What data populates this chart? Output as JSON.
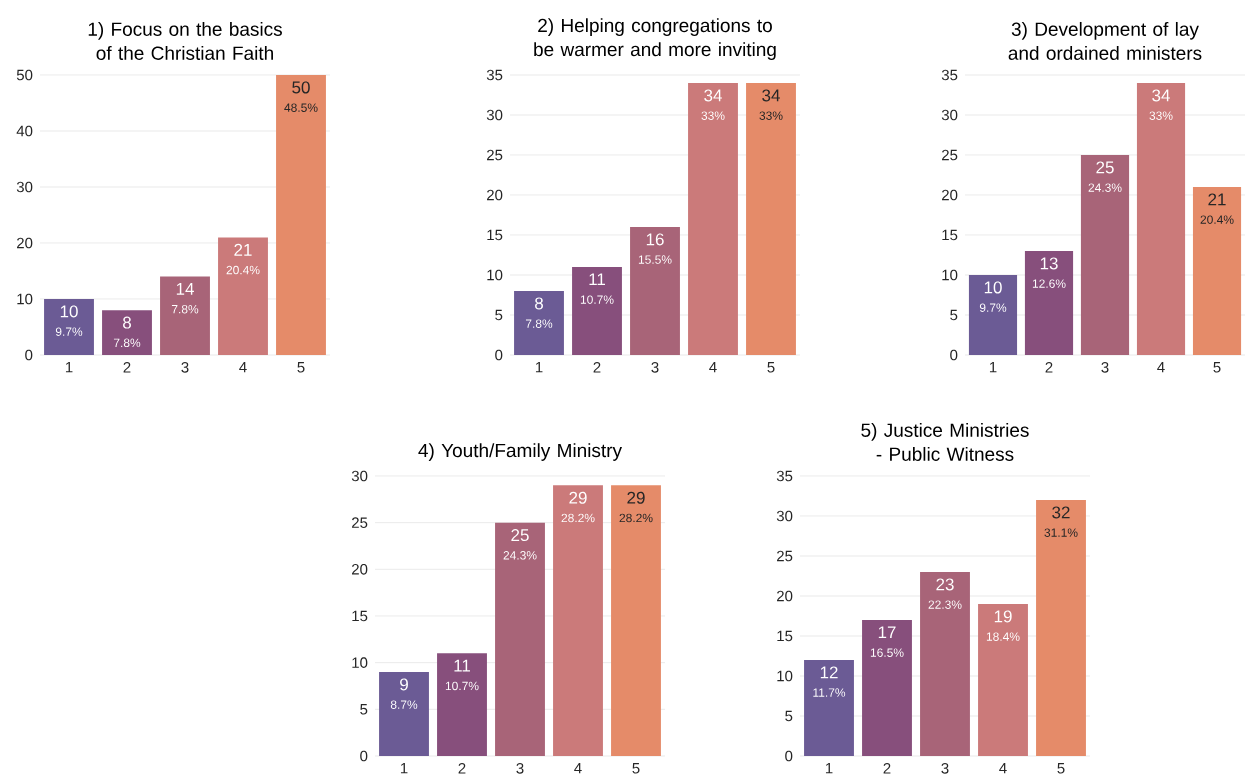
{
  "chart_data": [
    {
      "type": "bar",
      "title": "1) Focus on the basics of the Christian Faith",
      "categories": [
        "1",
        "2",
        "3",
        "4",
        "5"
      ],
      "values": [
        10,
        8,
        14,
        21,
        50
      ],
      "colors": [
        "#6b5b95",
        "#874f7c",
        "#a86478",
        "#cb7a7a",
        "#e58b69"
      ],
      "data_labels": true,
      "ylim": [
        0,
        50
      ],
      "yticks": [
        0,
        10,
        20,
        30,
        40,
        50
      ],
      "grid": "y",
      "annotations": [
        {
          "text": "9.7%",
          "x": "1",
          "y": 10
        },
        {
          "text": "7.8%",
          "x": "2",
          "y": 8
        },
        {
          "text": "7.8%",
          "x": "3",
          "y": 14
        },
        {
          "text": "20.4%",
          "x": "4",
          "y": 21
        },
        {
          "text": "48.5%",
          "x": "5",
          "y": 50
        }
      ]
    },
    {
      "type": "bar",
      "title": "2) Helping congregations to be warmer and more inviting",
      "categories": [
        "1",
        "2",
        "3",
        "4",
        "5"
      ],
      "values": [
        8,
        11,
        16,
        34,
        34
      ],
      "colors": [
        "#6b5b95",
        "#874f7c",
        "#a86478",
        "#cb7a7a",
        "#e58b69"
      ],
      "data_labels": true,
      "ylim": [
        0,
        35
      ],
      "yticks": [
        0,
        5,
        10,
        15,
        20,
        25,
        30,
        35
      ],
      "grid": "y",
      "annotations": [
        {
          "text": "7.8%",
          "x": "1",
          "y": 8
        },
        {
          "text": "10.7%",
          "x": "2",
          "y": 11
        },
        {
          "text": "15.5%",
          "x": "3",
          "y": 16
        },
        {
          "text": "33%",
          "x": "4",
          "y": 34
        },
        {
          "text": "33%",
          "x": "5",
          "y": 34
        }
      ]
    },
    {
      "type": "bar",
      "title": "3) Development of lay and ordained ministers",
      "categories": [
        "1",
        "2",
        "3",
        "4",
        "5"
      ],
      "values": [
        10,
        13,
        25,
        34,
        21
      ],
      "colors": [
        "#6b5b95",
        "#874f7c",
        "#a86478",
        "#cb7a7a",
        "#e58b69"
      ],
      "data_labels": true,
      "ylim": [
        0,
        35
      ],
      "yticks": [
        0,
        5,
        10,
        15,
        20,
        25,
        30,
        35
      ],
      "grid": "y",
      "annotations": [
        {
          "text": "9.7%",
          "x": "1",
          "y": 10
        },
        {
          "text": "12.6%",
          "x": "2",
          "y": 13
        },
        {
          "text": "24.3%",
          "x": "3",
          "y": 25
        },
        {
          "text": "33%",
          "x": "4",
          "y": 34
        },
        {
          "text": "20.4%",
          "x": "5",
          "y": 21
        }
      ]
    },
    {
      "type": "bar",
      "title": "4) Youth/Family Ministry",
      "categories": [
        "1",
        "2",
        "3",
        "4",
        "5"
      ],
      "values": [
        9,
        11,
        25,
        29,
        29
      ],
      "colors": [
        "#6b5b95",
        "#874f7c",
        "#a86478",
        "#cb7a7a",
        "#e58b69"
      ],
      "data_labels": true,
      "ylim": [
        0,
        30
      ],
      "yticks": [
        0,
        5,
        10,
        15,
        20,
        25,
        30
      ],
      "grid": "y",
      "annotations": [
        {
          "text": "8.7%",
          "x": "1",
          "y": 9
        },
        {
          "text": "10.7%",
          "x": "2",
          "y": 11
        },
        {
          "text": "24.3%",
          "x": "3",
          "y": 25
        },
        {
          "text": "28.2%",
          "x": "4",
          "y": 29
        },
        {
          "text": "28.2%",
          "x": "5",
          "y": 29
        }
      ]
    },
    {
      "type": "bar",
      "title": "5) Justice Ministries - Public Witness",
      "categories": [
        "1",
        "2",
        "3",
        "4",
        "5"
      ],
      "values": [
        12,
        17,
        23,
        19,
        32
      ],
      "colors": [
        "#6b5b95",
        "#874f7c",
        "#a86478",
        "#cb7a7a",
        "#e58b69"
      ],
      "data_labels": true,
      "ylim": [
        0,
        35
      ],
      "yticks": [
        0,
        5,
        10,
        15,
        20,
        25,
        30,
        35
      ],
      "grid": "y",
      "annotations": [
        {
          "text": "11.7%",
          "x": "1",
          "y": 12
        },
        {
          "text": "16.5%",
          "x": "2",
          "y": 17
        },
        {
          "text": "22.3%",
          "x": "3",
          "y": 23
        },
        {
          "text": "18.4%",
          "x": "4",
          "y": 19
        },
        {
          "text": "31.1%",
          "x": "5",
          "y": 32
        }
      ]
    }
  ]
}
